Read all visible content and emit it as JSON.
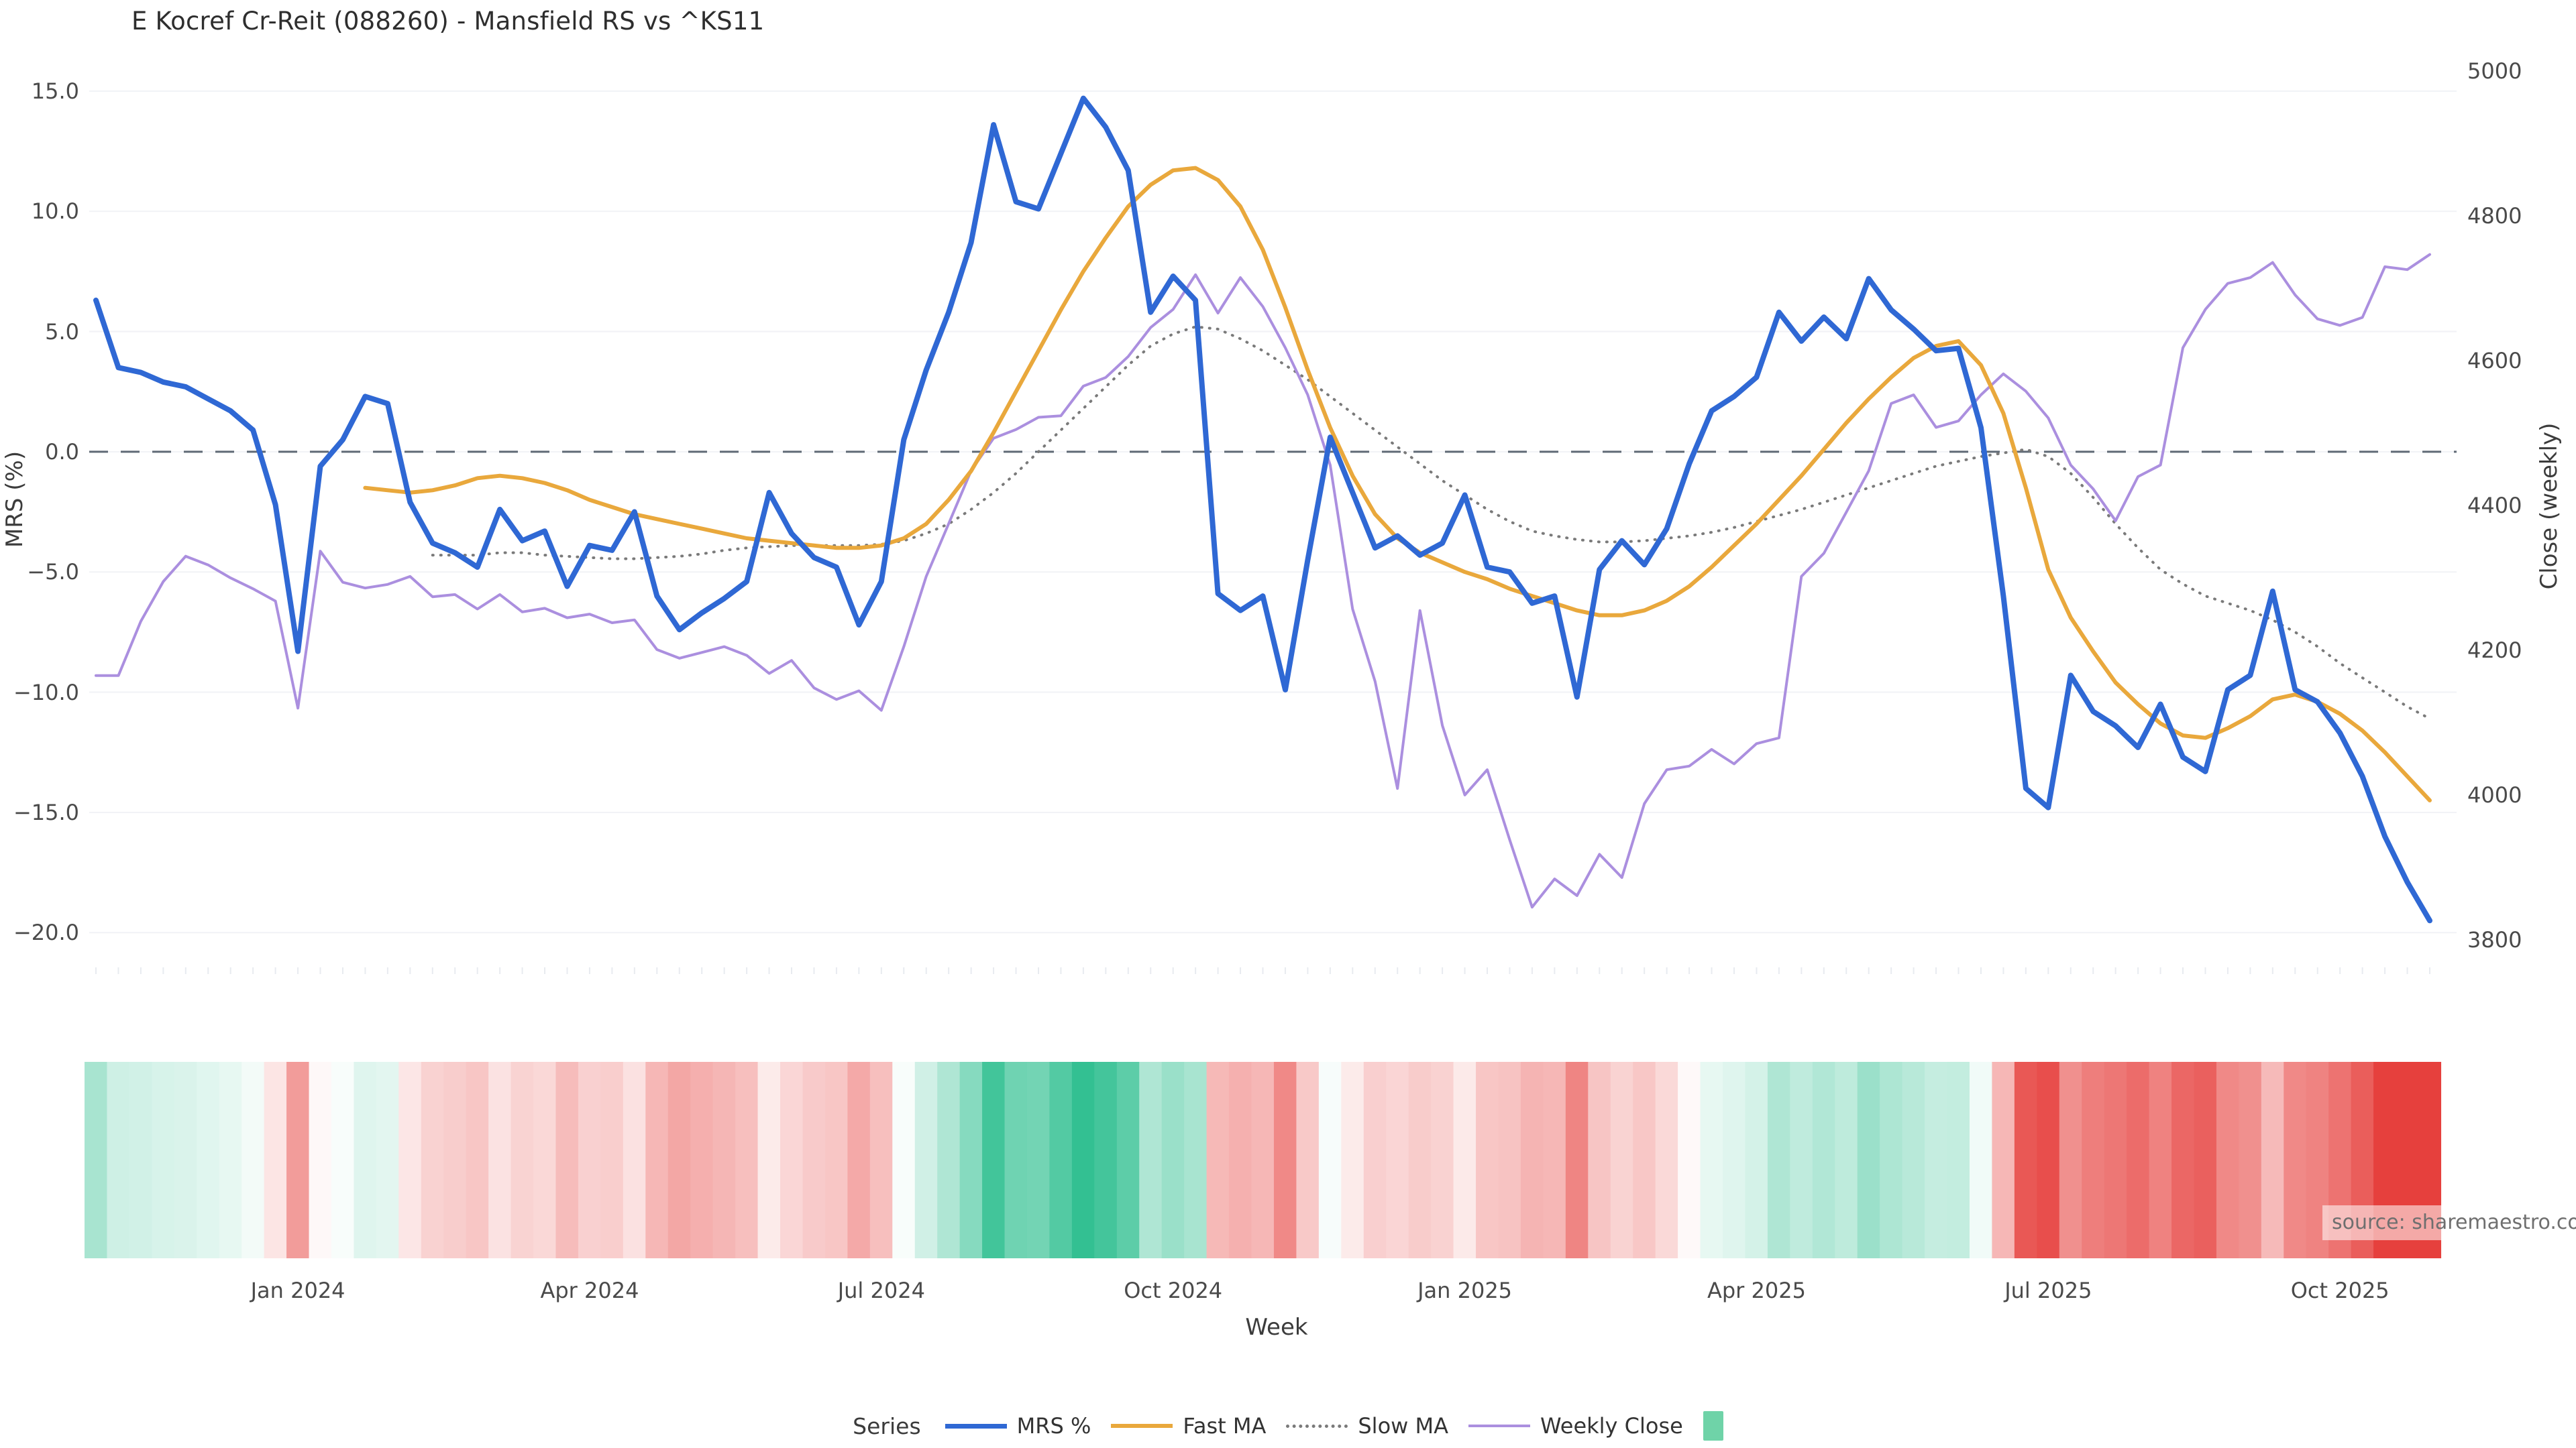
{
  "title": "E Kocref Cr-Reit (088260) - Mansfield RS vs ^KS11",
  "source_note": "source: sharemaestro.com",
  "colors": {
    "background": "#ffffff",
    "grid": "#f1f2f6",
    "zero_line": "#5f6975",
    "mrs": "#2f68d4",
    "fast_ma": "#e9a83c",
    "slow_ma": "#7a7a7a",
    "weekly_close": "#ab8fdf",
    "heat_positive": "#2fbf90",
    "heat_negative": "#e6403d",
    "heat_neutral": "#ffffff",
    "legend_square": "#6fd3a8",
    "title_text": "#2e2e2e",
    "tick_text": "#4a4a4a"
  },
  "chart_data": {
    "type": "line",
    "title": "E Kocref Cr-Reit (088260) - Mansfield RS vs ^KS11",
    "xlabel": "Week",
    "x_axis": {
      "label": "Week",
      "tick_labels": [
        "Jan 2024",
        "Apr 2024",
        "Jul 2024",
        "Oct 2024",
        "Jan 2025",
        "Apr 2025",
        "Jul 2025",
        "Oct 2025"
      ],
      "tick_week_indices": [
        9,
        22,
        35,
        48,
        61,
        74,
        87,
        100
      ],
      "weeks_total": 105
    },
    "y_left": {
      "label": "MRS (%)",
      "ticks": [
        15.0,
        10.0,
        5.0,
        0.0,
        -5.0,
        -10.0,
        -15.0,
        -20.0
      ],
      "range": [
        -21.5,
        16.0
      ],
      "grid": true
    },
    "y_right": {
      "label": "Close (weekly)",
      "ticks": [
        5000,
        4800,
        4600,
        4400,
        4200,
        4000,
        3800
      ],
      "range": [
        3760,
        5006
      ],
      "grid": false
    },
    "zero_line": {
      "value": 0.0,
      "style": "dashed",
      "color": "#5f6975"
    },
    "legend": {
      "title": "Series",
      "position": "bottom-center",
      "entries": [
        {
          "label": "MRS %",
          "swatch": "line",
          "color": "#2f68d4",
          "thickness": 7
        },
        {
          "label": "Fast MA",
          "swatch": "line",
          "color": "#e9a83c",
          "thickness": 6
        },
        {
          "label": "Slow MA",
          "swatch": "dotted",
          "color": "#7a7a7a",
          "thickness": 5
        },
        {
          "label": "Weekly Close",
          "swatch": "line",
          "color": "#ab8fdf",
          "thickness": 4
        },
        {
          "label": "",
          "swatch": "square",
          "color": "#6fd3a8"
        }
      ]
    },
    "series": [
      {
        "name": "MRS %",
        "axis": "left",
        "style": "solid",
        "color": "#2f68d4",
        "width": 8,
        "values": [
          6.3,
          3.5,
          3.3,
          2.9,
          2.7,
          2.2,
          1.7,
          0.9,
          -2.2,
          -8.3,
          -0.6,
          0.5,
          2.3,
          2.0,
          -2.1,
          -3.8,
          -4.2,
          -4.8,
          -2.4,
          -3.7,
          -3.3,
          -5.6,
          -3.9,
          -4.1,
          -2.5,
          -6.0,
          -7.4,
          -6.7,
          -6.1,
          -5.4,
          -1.7,
          -3.4,
          -4.4,
          -4.8,
          -7.2,
          -5.4,
          0.5,
          3.4,
          5.8,
          8.7,
          13.6,
          10.4,
          10.1,
          12.4,
          14.7,
          13.5,
          11.7,
          5.8,
          7.3,
          6.3,
          -5.9,
          -6.6,
          -6.0,
          -9.9,
          -4.5,
          0.6,
          -1.7,
          -4.0,
          -3.5,
          -4.3,
          -3.8,
          -1.8,
          -4.8,
          -5.0,
          -6.3,
          -6.0,
          -10.2,
          -4.9,
          -3.7,
          -4.7,
          -3.2,
          -0.5,
          1.7,
          2.3,
          3.1,
          5.8,
          4.6,
          5.6,
          4.7,
          7.2,
          5.9,
          5.1,
          4.2,
          4.3,
          1.0,
          -6.0,
          -14.0,
          -14.8,
          -9.3,
          -10.8,
          -11.4,
          -12.3,
          -10.5,
          -12.7,
          -13.3,
          -9.9,
          -9.3,
          -5.8,
          -9.9,
          -10.4,
          -11.7,
          -13.5,
          -16.0,
          -17.9,
          -19.5
        ]
      },
      {
        "name": "Fast MA",
        "axis": "left",
        "style": "solid",
        "color": "#e9a83c",
        "width": 6,
        "values": [
          null,
          null,
          null,
          null,
          null,
          null,
          null,
          null,
          null,
          null,
          null,
          null,
          -1.5,
          -1.6,
          -1.7,
          -1.6,
          -1.4,
          -1.1,
          -1.0,
          -1.1,
          -1.3,
          -1.6,
          -2.0,
          -2.3,
          -2.6,
          -2.8,
          -3.0,
          -3.2,
          -3.4,
          -3.6,
          -3.7,
          -3.8,
          -3.9,
          -4.0,
          -4.0,
          -3.9,
          -3.6,
          -3.0,
          -2.0,
          -0.8,
          0.8,
          2.5,
          4.2,
          5.9,
          7.5,
          8.9,
          10.2,
          11.1,
          11.7,
          11.8,
          11.3,
          10.2,
          8.4,
          6.0,
          3.4,
          1.0,
          -1.0,
          -2.6,
          -3.6,
          -4.2,
          -4.6,
          -5.0,
          -5.3,
          -5.7,
          -6.0,
          -6.3,
          -6.6,
          -6.8,
          -6.8,
          -6.6,
          -6.2,
          -5.6,
          -4.8,
          -3.9,
          -3.0,
          -2.0,
          -1.0,
          0.1,
          1.2,
          2.2,
          3.1,
          3.9,
          4.4,
          4.6,
          3.6,
          1.6,
          -1.5,
          -4.9,
          -6.9,
          -8.3,
          -9.6,
          -10.5,
          -11.3,
          -11.8,
          -11.9,
          -11.5,
          -11.0,
          -10.3,
          -10.1,
          -10.4,
          -10.9,
          -11.6,
          -12.5,
          -13.5,
          -14.5
        ]
      },
      {
        "name": "Slow MA",
        "axis": "left",
        "style": "dotted",
        "color": "#7a7a7a",
        "width": 4,
        "values": [
          null,
          null,
          null,
          null,
          null,
          null,
          null,
          null,
          null,
          null,
          null,
          null,
          null,
          null,
          null,
          -4.3,
          -4.3,
          -4.3,
          -4.2,
          -4.2,
          -4.3,
          -4.35,
          -4.4,
          -4.45,
          -4.45,
          -4.4,
          -4.35,
          -4.25,
          -4.1,
          -4.0,
          -3.95,
          -3.9,
          -3.9,
          -3.9,
          -3.9,
          -3.85,
          -3.7,
          -3.4,
          -3.0,
          -2.4,
          -1.7,
          -0.9,
          0.0,
          0.9,
          1.8,
          2.7,
          3.6,
          4.4,
          4.9,
          5.2,
          5.1,
          4.7,
          4.2,
          3.6,
          3.0,
          2.3,
          1.6,
          0.9,
          0.2,
          -0.5,
          -1.2,
          -1.8,
          -2.4,
          -2.9,
          -3.3,
          -3.5,
          -3.65,
          -3.75,
          -3.75,
          -3.7,
          -3.6,
          -3.5,
          -3.35,
          -3.15,
          -2.9,
          -2.65,
          -2.4,
          -2.1,
          -1.8,
          -1.5,
          -1.2,
          -0.9,
          -0.6,
          -0.4,
          -0.2,
          -0.05,
          0.1,
          -0.2,
          -0.9,
          -1.9,
          -3.0,
          -4.0,
          -4.9,
          -5.5,
          -6.0,
          -6.3,
          -6.6,
          -7.0,
          -7.5,
          -8.1,
          -8.8,
          -9.4,
          -10.0,
          -10.6,
          -11.1
        ]
      },
      {
        "name": "Weekly Close",
        "axis": "right",
        "style": "solid",
        "color": "#ab8fdf",
        "width": 4,
        "values": [
          4165,
          4165,
          4240,
          4295,
          4330,
          4318,
          4300,
          4285,
          4268,
          4120,
          4337,
          4294,
          4286,
          4291,
          4302,
          4274,
          4277,
          4257,
          4277,
          4253,
          4258,
          4245,
          4250,
          4238,
          4242,
          4201,
          4189,
          4197,
          4205,
          4193,
          4168,
          4186,
          4148,
          4132,
          4144,
          4117,
          4205,
          4302,
          4375,
          4448,
          4493,
          4505,
          4522,
          4524,
          4565,
          4577,
          4606,
          4646,
          4671,
          4719,
          4666,
          4715,
          4675,
          4618,
          4553,
          4456,
          4257,
          4157,
          4009,
          4255,
          4096,
          4000,
          4035,
          3938,
          3845,
          3884,
          3861,
          3918,
          3886,
          3988,
          4035,
          4040,
          4063,
          4043,
          4071,
          4079,
          4302,
          4334,
          4391,
          4448,
          4541,
          4553,
          4508,
          4517,
          4553,
          4582,
          4558,
          4521,
          4456,
          4423,
          4379,
          4440,
          4456,
          4618,
          4671,
          4707,
          4715,
          4736,
          4691,
          4658,
          4649,
          4660,
          4730,
          4726,
          4747
        ]
      }
    ],
    "heatmap": {
      "description": "weekly color strip below plot encoding MRS % (green positive, red negative)",
      "source_series": "MRS %",
      "positive_color": "#2fbf90",
      "negative_color": "#e6403d",
      "neutral_color": "#ffffff",
      "positive_saturation_at": 15,
      "negative_saturation_at": 16
    }
  }
}
